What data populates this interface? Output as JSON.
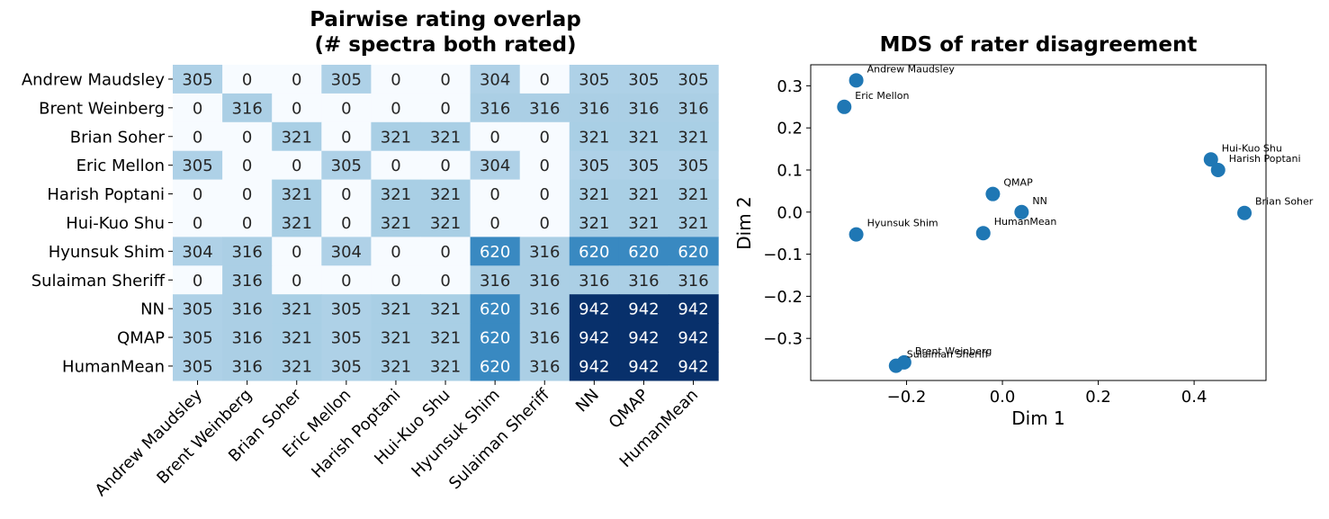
{
  "chart_data": [
    {
      "type": "heatmap",
      "title_lines": [
        "Pairwise rating overlap",
        "(# spectra both rated)"
      ],
      "row_labels": [
        "Andrew Maudsley",
        "Brent Weinberg",
        "Brian Soher",
        "Eric Mellon",
        "Harish Poptani",
        "Hui-Kuo Shu",
        "Hyunsuk Shim",
        "Sulaiman Sheriff",
        "NN",
        "QMAP",
        "HumanMean"
      ],
      "col_labels": [
        "Andrew Maudsley",
        "Brent Weinberg",
        "Brian Soher",
        "Eric Mellon",
        "Harish Poptani",
        "Hui-Kuo Shu",
        "Hyunsuk Shim",
        "Sulaiman Sheriff",
        "NN",
        "QMAP",
        "HumanMean"
      ],
      "values": [
        [
          305,
          0,
          0,
          305,
          0,
          0,
          304,
          0,
          305,
          305,
          305
        ],
        [
          0,
          316,
          0,
          0,
          0,
          0,
          316,
          316,
          316,
          316,
          316
        ],
        [
          0,
          0,
          321,
          0,
          321,
          321,
          0,
          0,
          321,
          321,
          321
        ],
        [
          305,
          0,
          0,
          305,
          0,
          0,
          304,
          0,
          305,
          305,
          305
        ],
        [
          0,
          0,
          321,
          0,
          321,
          321,
          0,
          0,
          321,
          321,
          321
        ],
        [
          0,
          0,
          321,
          0,
          321,
          321,
          0,
          0,
          321,
          321,
          321
        ],
        [
          304,
          316,
          0,
          304,
          0,
          0,
          620,
          316,
          620,
          620,
          620
        ],
        [
          0,
          316,
          0,
          0,
          0,
          0,
          316,
          316,
          316,
          316,
          316
        ],
        [
          305,
          316,
          321,
          305,
          321,
          321,
          620,
          316,
          942,
          942,
          942
        ],
        [
          305,
          316,
          321,
          305,
          321,
          321,
          620,
          316,
          942,
          942,
          942
        ],
        [
          305,
          316,
          321,
          305,
          321,
          321,
          620,
          316,
          942,
          942,
          942
        ]
      ],
      "vmin": 0,
      "vmax": 942,
      "colormap": [
        "#f7fbff",
        "#deebf7",
        "#c6dbef",
        "#9ecae1",
        "#6baed6",
        "#4292c6",
        "#2171b5",
        "#08519c",
        "#08306b"
      ]
    },
    {
      "type": "scatter",
      "title": "MDS of rater disagreement",
      "xlabel": "Dim 1",
      "ylabel": "Dim 2",
      "xlim": [
        -0.4,
        0.55
      ],
      "ylim": [
        -0.4,
        0.35
      ],
      "xticks": [
        -0.2,
        0.0,
        0.2,
        0.4
      ],
      "yticks": [
        -0.3,
        -0.2,
        -0.1,
        0.0,
        0.1,
        0.2,
        0.3
      ],
      "xtick_labels": [
        "−0.2",
        "0.0",
        "0.2",
        "0.4"
      ],
      "ytick_labels": [
        "−0.3",
        "−0.2",
        "−0.1",
        "0.0",
        "0.1",
        "0.2",
        "0.3"
      ],
      "point_color": "#1f77b4",
      "points": [
        {
          "label": "Andrew Maudsley",
          "x": -0.305,
          "y": 0.313
        },
        {
          "label": "Eric Mellon",
          "x": -0.33,
          "y": 0.25
        },
        {
          "label": "Hui-Kuo Shu",
          "x": 0.435,
          "y": 0.125
        },
        {
          "label": "Harish Poptani",
          "x": 0.45,
          "y": 0.1
        },
        {
          "label": "Brian Soher",
          "x": 0.505,
          "y": -0.002
        },
        {
          "label": "QMAP",
          "x": -0.02,
          "y": 0.043
        },
        {
          "label": "NN",
          "x": 0.04,
          "y": 0.0
        },
        {
          "label": "HumanMean",
          "x": -0.04,
          "y": -0.05
        },
        {
          "label": "Hyunsuk Shim",
          "x": -0.305,
          "y": -0.053
        },
        {
          "label": "Brent Weinberg",
          "x": -0.205,
          "y": -0.357
        },
        {
          "label": "Sulaiman Sheriff",
          "x": -0.222,
          "y": -0.365
        }
      ]
    }
  ]
}
